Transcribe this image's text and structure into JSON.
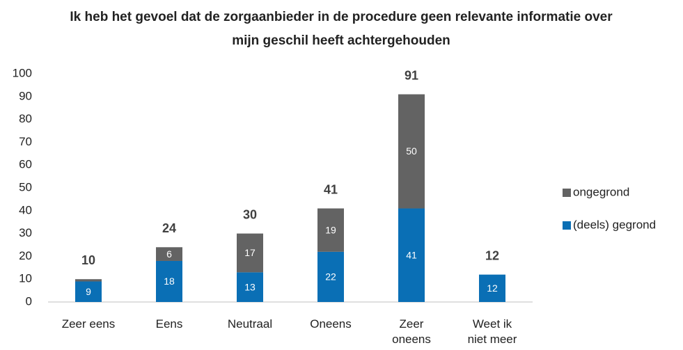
{
  "chart_data": {
    "type": "stacked_bar",
    "title": "Ik heb het gevoel dat de zorgaanbieder in de procedure geen relevante informatie over mijn geschil heeft achtergehouden",
    "categories": [
      "Zeer eens",
      "Eens",
      "Neutraal",
      "Oneens",
      "Zeer\noneens",
      "Weet ik\nniet meer"
    ],
    "series": [
      {
        "name": "(deels) gegrond",
        "color": "#0a6fb5",
        "values": [
          9,
          18,
          13,
          22,
          41,
          12
        ]
      },
      {
        "name": "ongegrond",
        "color": "#636363",
        "values": [
          1,
          6,
          17,
          19,
          50,
          0
        ]
      }
    ],
    "totals": [
      10,
      24,
      30,
      41,
      91,
      12
    ],
    "ylim": [
      0,
      100
    ],
    "yticks": [
      0,
      10,
      20,
      30,
      40,
      50,
      60,
      70,
      80,
      90,
      100
    ],
    "legend": "right"
  }
}
